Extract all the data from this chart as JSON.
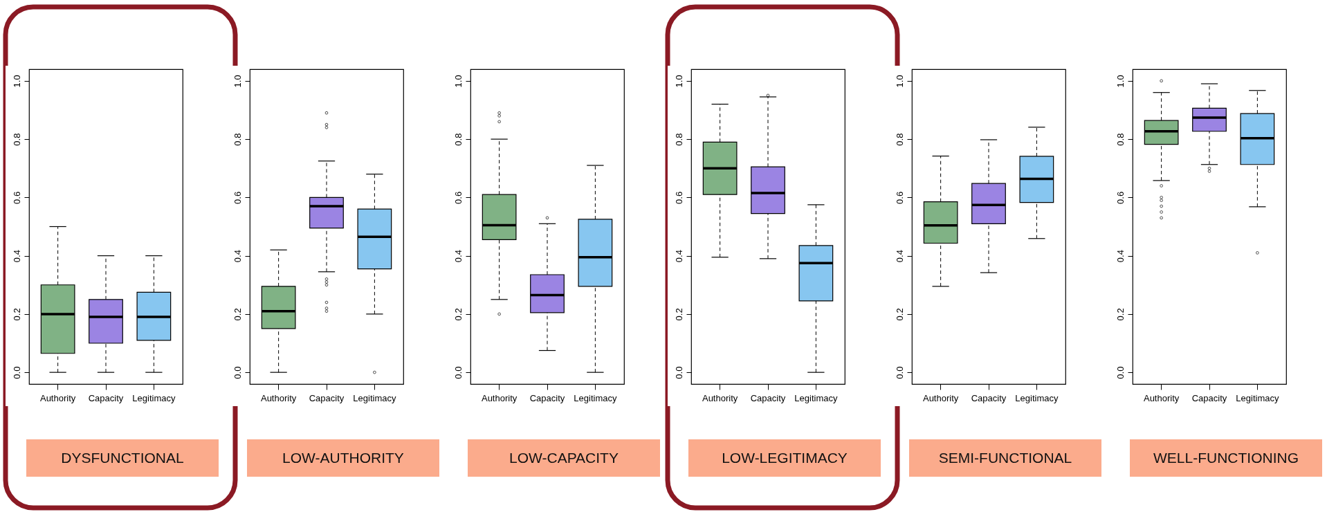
{
  "chart_data": [
    {
      "type": "box",
      "title": "DYSFUNCTIONAL",
      "categories": [
        "Authority",
        "Capacity",
        "Legitimacy"
      ],
      "colors": [
        "#80b285",
        "#9b84e3",
        "#87c6f0"
      ],
      "boxes": [
        {
          "low": 0,
          "q1": 0.065,
          "median": 0.2,
          "q3": 0.3,
          "high": 0.5
        },
        {
          "low": 0,
          "q1": 0.1,
          "median": 0.19,
          "q3": 0.25,
          "high": 0.4
        },
        {
          "low": 0,
          "q1": 0.11,
          "median": 0.19,
          "q3": 0.275,
          "high": 0.4
        }
      ],
      "ylim": [
        -0.04,
        1.04
      ],
      "yticks": [
        {
          "value": 0,
          "label": "0.0"
        },
        {
          "value": 0.2,
          "label": "0.2"
        },
        {
          "value": 0.4,
          "label": "0.4"
        },
        {
          "value": 0.6,
          "label": "0.6"
        },
        {
          "value": 0.8,
          "label": "0.8"
        },
        {
          "value": 1,
          "label": "1.0"
        }
      ]
    },
    {
      "type": "box",
      "title": "LOW-AUTHORITY",
      "categories": [
        "Authority",
        "Capacity",
        "Legitimacy"
      ],
      "colors": [
        "#80b285",
        "#9b84e3",
        "#87c6f0"
      ],
      "boxes": [
        {
          "low": 0,
          "q1": 0.15,
          "median": 0.21,
          "q3": 0.295,
          "high": 0.42
        },
        {
          "low": 0.345,
          "q1": 0.495,
          "median": 0.57,
          "q3": 0.6,
          "high": 0.725,
          "outliers": [
            0.21,
            0.22,
            0.24,
            0.3,
            0.31,
            0.32,
            0.84,
            0.85,
            0.89
          ]
        },
        {
          "low": 0.2,
          "q1": 0.355,
          "median": 0.465,
          "q3": 0.56,
          "high": 0.68,
          "outliers": [
            0
          ]
        }
      ],
      "ylim": [
        -0.04,
        1.04
      ],
      "yticks": [
        {
          "value": 0,
          "label": "0.0"
        },
        {
          "value": 0.2,
          "label": "0.2"
        },
        {
          "value": 0.4,
          "label": "0.4"
        },
        {
          "value": 0.6,
          "label": "0.6"
        },
        {
          "value": 0.8,
          "label": "0.8"
        },
        {
          "value": 1,
          "label": "1.0"
        }
      ]
    },
    {
      "type": "box",
      "title": "LOW-CAPACITY",
      "categories": [
        "Authority",
        "Capacity",
        "Legitimacy"
      ],
      "colors": [
        "#80b285",
        "#9b84e3",
        "#87c6f0"
      ],
      "boxes": [
        {
          "low": 0.25,
          "q1": 0.455,
          "median": 0.505,
          "q3": 0.61,
          "high": 0.8,
          "outliers": [
            0.2,
            0.86,
            0.88,
            0.89
          ]
        },
        {
          "low": 0.075,
          "q1": 0.205,
          "median": 0.265,
          "q3": 0.335,
          "high": 0.51,
          "outliers": [
            0.53
          ]
        },
        {
          "low": 0,
          "q1": 0.295,
          "median": 0.395,
          "q3": 0.525,
          "high": 0.71
        }
      ],
      "ylim": [
        -0.04,
        1.04
      ],
      "yticks": [
        {
          "value": 0,
          "label": "0.0"
        },
        {
          "value": 0.2,
          "label": "0.2"
        },
        {
          "value": 0.4,
          "label": "0.4"
        },
        {
          "value": 0.6,
          "label": "0.6"
        },
        {
          "value": 0.8,
          "label": "0.8"
        },
        {
          "value": 1,
          "label": "1.0"
        }
      ]
    },
    {
      "type": "box",
      "title": "LOW-LEGITIMACY",
      "categories": [
        "Authority",
        "Capacity",
        "Legitimacy"
      ],
      "colors": [
        "#80b285",
        "#9b84e3",
        "#87c6f0"
      ],
      "boxes": [
        {
          "low": 0.395,
          "q1": 0.61,
          "median": 0.7,
          "q3": 0.79,
          "high": 0.92
        },
        {
          "low": 0.39,
          "q1": 0.545,
          "median": 0.615,
          "q3": 0.705,
          "high": 0.945,
          "outliers": [
            0.95
          ]
        },
        {
          "low": 0,
          "q1": 0.245,
          "median": 0.375,
          "q3": 0.435,
          "high": 0.575
        }
      ],
      "ylim": [
        -0.04,
        1.04
      ],
      "yticks": [
        {
          "value": 0,
          "label": "0.0"
        },
        {
          "value": 0.2,
          "label": "0.2"
        },
        {
          "value": 0.4,
          "label": "0.4"
        },
        {
          "value": 0.6,
          "label": "0.6"
        },
        {
          "value": 0.8,
          "label": "0.8"
        },
        {
          "value": 1,
          "label": "1.0"
        }
      ]
    },
    {
      "type": "box",
      "title": "SEMI-FUNCTIONAL",
      "categories": [
        "Authority",
        "Capacity",
        "Legitimacy"
      ],
      "colors": [
        "#80b285",
        "#9b84e3",
        "#87c6f0"
      ],
      "boxes": [
        {
          "low": 0.295,
          "q1": 0.443,
          "median": 0.504,
          "q3": 0.585,
          "high": 0.742
        },
        {
          "low": 0.342,
          "q1": 0.51,
          "median": 0.574,
          "q3": 0.648,
          "high": 0.798
        },
        {
          "low": 0.459,
          "q1": 0.583,
          "median": 0.664,
          "q3": 0.741,
          "high": 0.841
        }
      ],
      "ylim": [
        -0.04,
        1.04
      ],
      "yticks": [
        {
          "value": 0,
          "label": "0.0"
        },
        {
          "value": 0.2,
          "label": "0.2"
        },
        {
          "value": 0.4,
          "label": "0.4"
        },
        {
          "value": 0.6,
          "label": "0.6"
        },
        {
          "value": 0.8,
          "label": "0.8"
        },
        {
          "value": 1,
          "label": "1.0"
        }
      ]
    },
    {
      "type": "box",
      "title": "WELL-FUNCTIONING",
      "categories": [
        "Authority",
        "Capacity",
        "Legitimacy"
      ],
      "colors": [
        "#80b285",
        "#9b84e3",
        "#87c6f0"
      ],
      "boxes": [
        {
          "low": 0.658,
          "q1": 0.782,
          "median": 0.827,
          "q3": 0.864,
          "high": 0.96,
          "outliers": [
            0.53,
            0.55,
            0.57,
            0.59,
            0.6,
            0.64,
            1.0
          ]
        },
        {
          "low": 0.713,
          "q1": 0.827,
          "median": 0.874,
          "q3": 0.906,
          "high": 0.99,
          "outliers": [
            0.69,
            0.7
          ]
        },
        {
          "low": 0.568,
          "q1": 0.713,
          "median": 0.803,
          "q3": 0.888,
          "high": 0.967,
          "outliers": [
            0.41
          ]
        }
      ],
      "ylim": [
        -0.04,
        1.04
      ],
      "yticks": [
        {
          "value": 0,
          "label": "0.0"
        },
        {
          "value": 0.2,
          "label": "0.2"
        },
        {
          "value": 0.4,
          "label": "0.4"
        },
        {
          "value": 0.6,
          "label": "0.6"
        },
        {
          "value": 0.8,
          "label": "0.8"
        },
        {
          "value": 1,
          "label": "1.0"
        }
      ]
    }
  ]
}
